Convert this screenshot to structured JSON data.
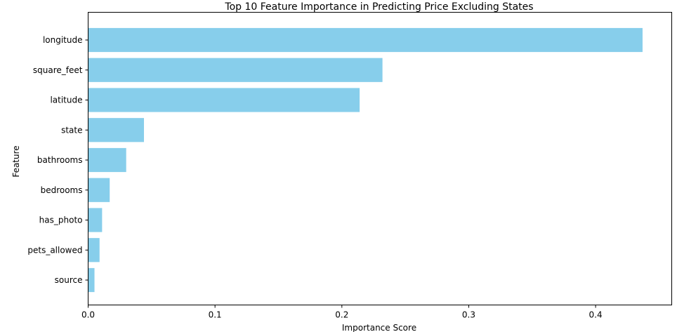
{
  "chart_data": {
    "type": "bar",
    "orientation": "horizontal",
    "title": "Top 10 Feature Importance in Predicting Price Excluding States",
    "xlabel": "Importance Score",
    "ylabel": "Feature",
    "categories": [
      "longitude",
      "square_feet",
      "latitude",
      "state",
      "bathrooms",
      "bedrooms",
      "has_photo",
      "pets_allowed",
      "source"
    ],
    "values": [
      0.437,
      0.232,
      0.214,
      0.044,
      0.03,
      0.017,
      0.011,
      0.009,
      0.005
    ],
    "xlim": [
      0,
      0.46
    ],
    "xticks": [
      "0.0",
      "0.1",
      "0.2",
      "0.3",
      "0.4"
    ],
    "xtick_values": [
      0.0,
      0.1,
      0.2,
      0.3,
      0.4
    ],
    "bar_color": "#87ceeb",
    "grid": false,
    "legend": "none"
  }
}
